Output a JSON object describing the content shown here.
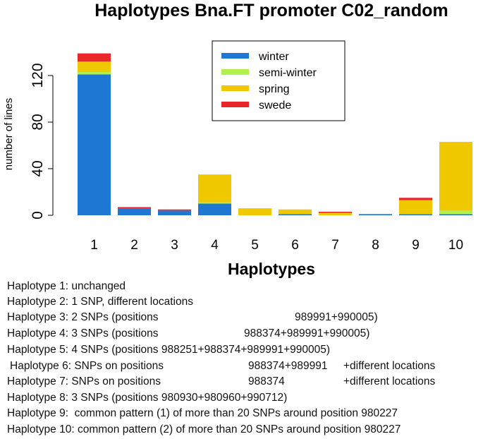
{
  "chart_data": {
    "type": "bar",
    "stacked": true,
    "title": "Haplotypes Bna.FT promoter C02_random",
    "xlabel": "Haplotypes",
    "ylabel": "number of lines",
    "ylim": [
      0,
      140
    ],
    "yticks": [
      0,
      40,
      80,
      120
    ],
    "categories": [
      "1",
      "2",
      "3",
      "4",
      "5",
      "6",
      "7",
      "8",
      "9",
      "10"
    ],
    "series": [
      {
        "name": "winter",
        "color": "#1f77d4",
        "values": [
          121,
          6,
          4,
          10,
          0,
          1,
          0,
          1,
          1,
          1
        ]
      },
      {
        "name": "semi-winter",
        "color": "#b2f04a",
        "values": [
          2,
          0,
          0,
          1,
          0,
          0,
          0,
          0,
          0,
          3
        ]
      },
      {
        "name": "spring",
        "color": "#f0c800",
        "values": [
          9,
          0,
          0,
          24,
          6,
          4,
          2,
          0,
          12,
          59
        ]
      },
      {
        "name": "swede",
        "color": "#e8262c",
        "values": [
          7,
          1,
          1,
          0,
          0,
          0,
          1,
          0,
          2,
          0
        ]
      }
    ],
    "legend_position": "top-right",
    "grid": false
  },
  "notes": [
    {
      "label": "Haplotype 1:",
      "text": " unchanged"
    },
    {
      "label": "Haplotype 2:",
      "text": " 1 SNP, different locations"
    },
    {
      "label": "Haplotype 3:",
      "text": " 2 SNPs (positions",
      "pos": "989991+990005)"
    },
    {
      "label": "Haplotype 4:",
      "text": " 3 SNPs (positions",
      "pos": "988374+989991+990005)"
    },
    {
      "label": "Haplotype 5:",
      "text": " 4 SNPs (positions 988251+988374+989991+990005)"
    },
    {
      "label": "Haplotype 6:",
      "text": " SNPs on positions",
      "pos": "988374+989991",
      "extra": "+different locations"
    },
    {
      "label": "Haplotype 7:",
      "text": " SNPs on positions",
      "pos": "988374",
      "extra": "+different locations"
    },
    {
      "label": "Haplotype 8:",
      "text": " 3 SNPs (positions 980930+980960+990712)"
    },
    {
      "label": "Haplotype 9:",
      "text": "  common pattern (1) of more than 20 SNPs around position 980227"
    },
    {
      "label": "Haplotype 10:",
      "text": " common pattern (2) of more than 20 SNPs around position 980227"
    }
  ]
}
